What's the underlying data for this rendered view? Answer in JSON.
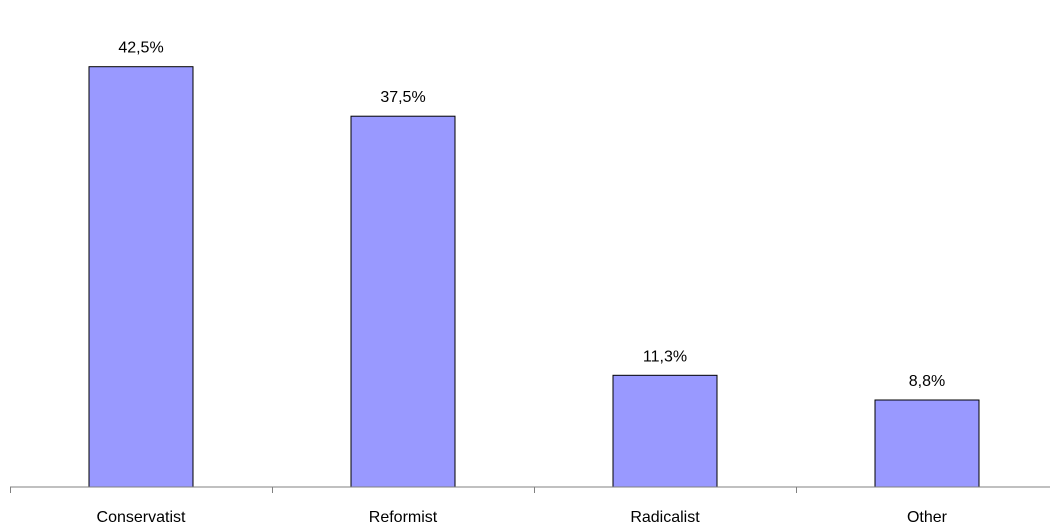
{
  "chart_data": {
    "type": "bar",
    "title": "",
    "xlabel": "",
    "ylabel": "",
    "categories": [
      "Conservatist",
      "Reformist",
      "Radicalist",
      "Other"
    ],
    "values": [
      42.5,
      37.5,
      11.3,
      8.8
    ],
    "value_labels": [
      "42,5%",
      "37,5%",
      "11,3%",
      "8,8%"
    ],
    "ylim": [
      0,
      45
    ],
    "grid": false,
    "legend": "none",
    "bar_color": "#9999FF",
    "bar_edge_color": "#000000"
  }
}
